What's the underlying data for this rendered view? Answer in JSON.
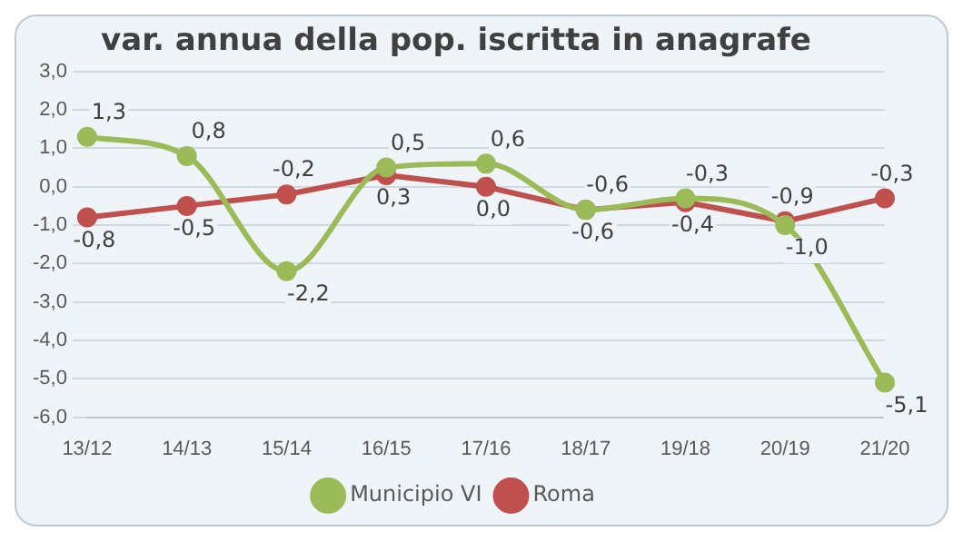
{
  "chart_data": {
    "type": "line",
    "title": "var. annua della pop. iscritta in anagrafe",
    "categories": [
      "13/12",
      "14/13",
      "15/14",
      "16/15",
      "17/16",
      "18/17",
      "19/18",
      "20/19",
      "21/20"
    ],
    "series": [
      {
        "name": "Municipio VI",
        "color": "#9bbb59",
        "values": [
          1.3,
          0.8,
          -2.2,
          0.5,
          0.6,
          -0.6,
          -0.3,
          -1.0,
          -5.1
        ],
        "value_labels": [
          "1,3",
          "0,8",
          "-2,2",
          "0,5",
          "0,6",
          "-0,6",
          "-0,3",
          "-1,0",
          "-5,1"
        ]
      },
      {
        "name": "Roma",
        "color": "#c0504d",
        "values": [
          -0.8,
          -0.5,
          -0.2,
          0.3,
          0.0,
          -0.6,
          -0.4,
          -0.9,
          -0.3
        ],
        "value_labels": [
          "-0,8",
          "-0,5",
          "-0,2",
          "0,3",
          "0,0",
          "-0,6",
          "-0,4",
          "-0,9",
          "-0,3"
        ]
      }
    ],
    "ylim": [
      -6,
      3
    ],
    "yticks": [
      {
        "value": -6,
        "label": "-6,0"
      },
      {
        "value": -5,
        "label": "-5,0"
      },
      {
        "value": -4,
        "label": "-4,0"
      },
      {
        "value": -3,
        "label": "-3,0"
      },
      {
        "value": -2,
        "label": "-2,0"
      },
      {
        "value": -1,
        "label": "-1,0"
      },
      {
        "value": 0,
        "label": "0,0"
      },
      {
        "value": 1,
        "label": "1,0"
      },
      {
        "value": 2,
        "label": "2,0"
      },
      {
        "value": 3,
        "label": "3,0"
      }
    ],
    "grid": "y",
    "legend": "bottom",
    "marker": "circle",
    "line_style": "solid"
  }
}
